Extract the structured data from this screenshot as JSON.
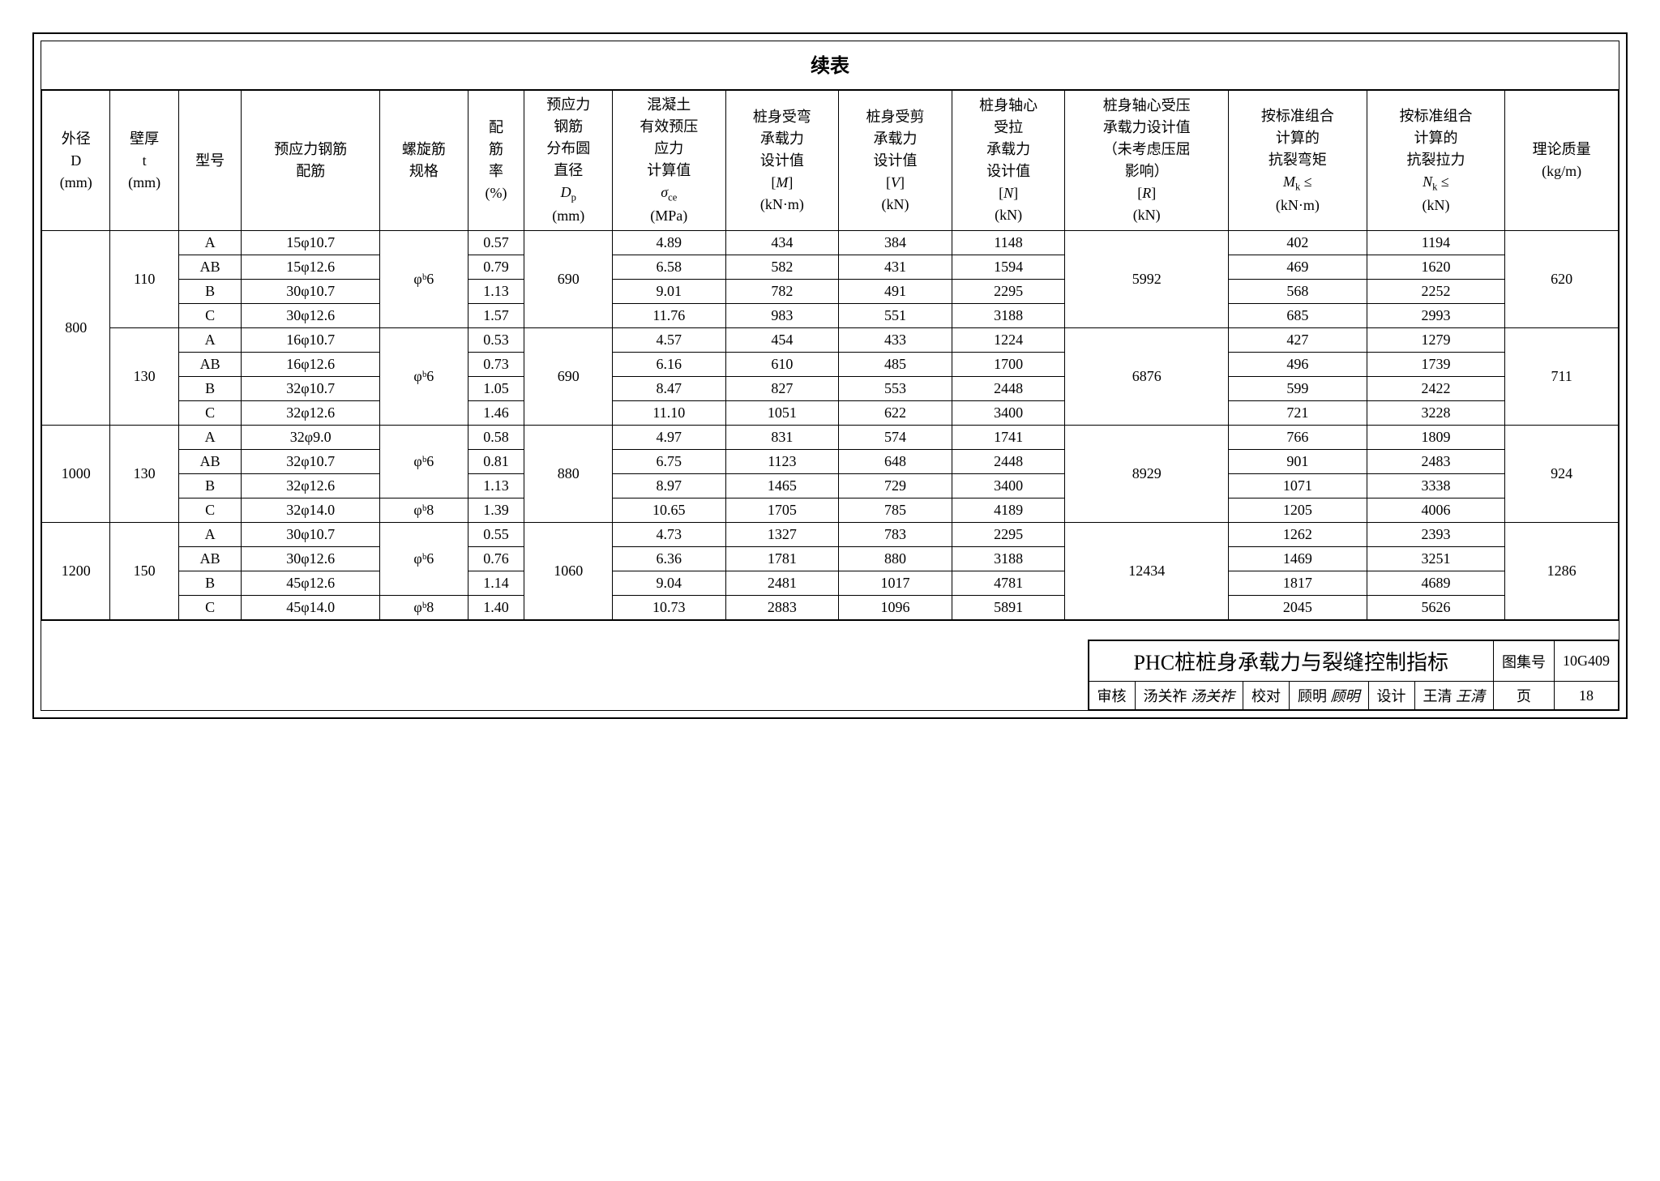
{
  "title": "续表",
  "headers": {
    "col1": "外径\nD\n(mm)",
    "col2": "壁厚\nt\n(mm)",
    "col3": "型号",
    "col4": "预应力钢筋\n配筋",
    "col5": "螺旋筋\n规格",
    "col6": "配\n筋\n率\n(%)",
    "col7": "预应力\n钢筋\n分布圆\n直径\nDₚ\n(mm)",
    "col8": "混凝土\n有效预压\n应力\n计算值\nσ꜀ₑ\n(MPa)",
    "col9": "桩身受弯\n承载力\n设计值\n[M]\n(kN·m)",
    "col10": "桩身受剪\n承载力\n设计值\n[V]\n(kN)",
    "col11": "桩身轴心\n受拉\n承载力\n设计值\n[N]\n(kN)",
    "col12": "桩身轴心受压\n承载力设计值\n（未考虑压屈\n影响）\n[R]\n(kN)",
    "col13": "按标准组合\n计算的\n抗裂弯矩\nMₖ ≤\n(kN·m)",
    "col14": "按标准组合\n计算的\n抗裂拉力\nNₖ ≤\n(kN)",
    "col15": "理论质量\n(kg/m)"
  },
  "groups": [
    {
      "D": "800",
      "subgroups": [
        {
          "t": "110",
          "spiral": "φᵇ6",
          "Dp": "690",
          "R": "5992",
          "mass": "620",
          "rows": [
            {
              "type": "A",
              "rebar": "15φ10.7",
              "ratio": "0.57",
              "sigma": "4.89",
              "M": "434",
              "V": "384",
              "N": "1148",
              "Mk": "402",
              "Nk": "1194"
            },
            {
              "type": "AB",
              "rebar": "15φ12.6",
              "ratio": "0.79",
              "sigma": "6.58",
              "M": "582",
              "V": "431",
              "N": "1594",
              "Mk": "469",
              "Nk": "1620"
            },
            {
              "type": "B",
              "rebar": "30φ10.7",
              "ratio": "1.13",
              "sigma": "9.01",
              "M": "782",
              "V": "491",
              "N": "2295",
              "Mk": "568",
              "Nk": "2252"
            },
            {
              "type": "C",
              "rebar": "30φ12.6",
              "ratio": "1.57",
              "sigma": "11.76",
              "M": "983",
              "V": "551",
              "N": "3188",
              "Mk": "685",
              "Nk": "2993"
            }
          ]
        },
        {
          "t": "130",
          "spiral": "φᵇ6",
          "Dp": "690",
          "R": "6876",
          "mass": "711",
          "rows": [
            {
              "type": "A",
              "rebar": "16φ10.7",
              "ratio": "0.53",
              "sigma": "4.57",
              "M": "454",
              "V": "433",
              "N": "1224",
              "Mk": "427",
              "Nk": "1279"
            },
            {
              "type": "AB",
              "rebar": "16φ12.6",
              "ratio": "0.73",
              "sigma": "6.16",
              "M": "610",
              "V": "485",
              "N": "1700",
              "Mk": "496",
              "Nk": "1739"
            },
            {
              "type": "B",
              "rebar": "32φ10.7",
              "ratio": "1.05",
              "sigma": "8.47",
              "M": "827",
              "V": "553",
              "N": "2448",
              "Mk": "599",
              "Nk": "2422"
            },
            {
              "type": "C",
              "rebar": "32φ12.6",
              "ratio": "1.46",
              "sigma": "11.10",
              "M": "1051",
              "V": "622",
              "N": "3400",
              "Mk": "721",
              "Nk": "3228"
            }
          ]
        }
      ]
    },
    {
      "D": "1000",
      "subgroups": [
        {
          "t": "130",
          "spiral_rows": [
            "φᵇ6",
            "φᵇ6",
            "φᵇ6",
            "φᵇ8"
          ],
          "spiral_span": [
            3,
            1
          ],
          "Dp": "880",
          "R": "8929",
          "mass": "924",
          "rows": [
            {
              "type": "A",
              "rebar": "32φ9.0",
              "ratio": "0.58",
              "sigma": "4.97",
              "M": "831",
              "V": "574",
              "N": "1741",
              "Mk": "766",
              "Nk": "1809"
            },
            {
              "type": "AB",
              "rebar": "32φ10.7",
              "ratio": "0.81",
              "sigma": "6.75",
              "M": "1123",
              "V": "648",
              "N": "2448",
              "Mk": "901",
              "Nk": "2483"
            },
            {
              "type": "B",
              "rebar": "32φ12.6",
              "ratio": "1.13",
              "sigma": "8.97",
              "M": "1465",
              "V": "729",
              "N": "3400",
              "Mk": "1071",
              "Nk": "3338"
            },
            {
              "type": "C",
              "rebar": "32φ14.0",
              "ratio": "1.39",
              "sigma": "10.65",
              "M": "1705",
              "V": "785",
              "N": "4189",
              "Mk": "1205",
              "Nk": "4006"
            }
          ]
        }
      ]
    },
    {
      "D": "1200",
      "subgroups": [
        {
          "t": "150",
          "spiral_rows": [
            "φᵇ6",
            "φᵇ6",
            "φᵇ6",
            "φᵇ8"
          ],
          "spiral_span": [
            3,
            1
          ],
          "Dp": "1060",
          "R": "12434",
          "mass": "1286",
          "rows": [
            {
              "type": "A",
              "rebar": "30φ10.7",
              "ratio": "0.55",
              "sigma": "4.73",
              "M": "1327",
              "V": "783",
              "N": "2295",
              "Mk": "1262",
              "Nk": "2393"
            },
            {
              "type": "AB",
              "rebar": "30φ12.6",
              "ratio": "0.76",
              "sigma": "6.36",
              "M": "1781",
              "V": "880",
              "N": "3188",
              "Mk": "1469",
              "Nk": "3251"
            },
            {
              "type": "B",
              "rebar": "45φ12.6",
              "ratio": "1.14",
              "sigma": "9.04",
              "M": "2481",
              "V": "1017",
              "N": "4781",
              "Mk": "1817",
              "Nk": "4689"
            },
            {
              "type": "C",
              "rebar": "45φ14.0",
              "ratio": "1.40",
              "sigma": "10.73",
              "M": "2883",
              "V": "1096",
              "N": "5891",
              "Mk": "2045",
              "Nk": "5626"
            }
          ]
        }
      ]
    }
  ],
  "footer": {
    "main_title": "PHC桩桩身承载力与裂缝控制指标",
    "atlas_label": "图集号",
    "atlas_value": "10G409",
    "review_label": "审核",
    "review_name": "汤关祚",
    "review_sig": "汤关祚",
    "check_label": "校对",
    "check_name": "顾明",
    "check_sig": "顾明",
    "design_label": "设计",
    "design_name": "王清",
    "design_sig": "王清",
    "page_label": "页",
    "page_value": "18"
  }
}
